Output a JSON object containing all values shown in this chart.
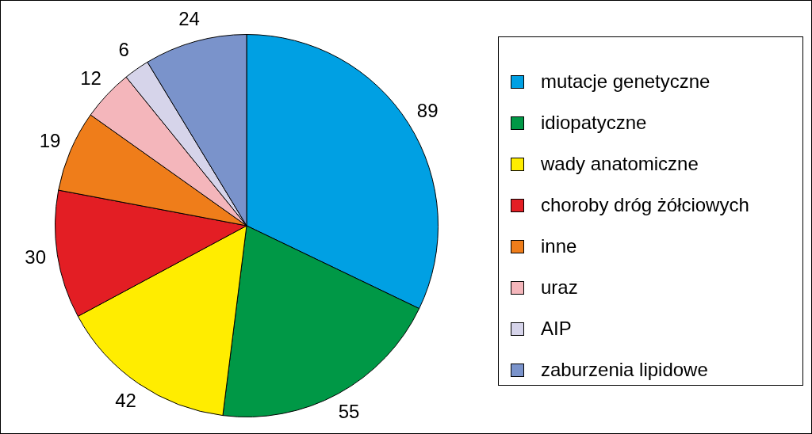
{
  "chart_data": {
    "type": "pie",
    "categories": [
      "mutacje genetyczne",
      "idiopatyczne",
      "wady anatomiczne",
      "choroby dróg żółciowych",
      "inne",
      "uraz",
      "AIP",
      "zaburzenia lipidowe"
    ],
    "values": [
      89,
      55,
      42,
      30,
      19,
      12,
      6,
      24
    ],
    "colors": [
      "#00a0e3",
      "#009846",
      "#ffed00",
      "#e31e24",
      "#ef7d1a",
      "#f4b6bb",
      "#d6d4ea",
      "#7a93cb"
    ],
    "data_labels": true,
    "legend": "right"
  }
}
